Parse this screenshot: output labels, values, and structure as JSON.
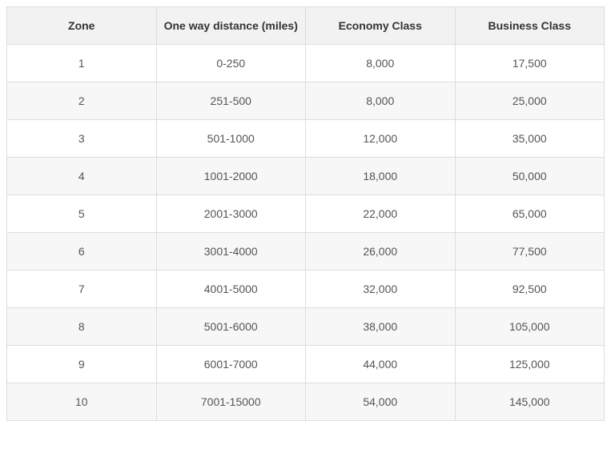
{
  "table": {
    "name": "award-zone-chart",
    "columns": [
      {
        "key": "zone",
        "label": "Zone"
      },
      {
        "key": "distance",
        "label": "One way distance (miles)"
      },
      {
        "key": "economy",
        "label": "Economy Class"
      },
      {
        "key": "business",
        "label": "Business Class"
      }
    ],
    "rows": [
      {
        "zone": "1",
        "distance": "0-250",
        "economy": "8,000",
        "business": "17,500"
      },
      {
        "zone": "2",
        "distance": "251-500",
        "economy": "8,000",
        "business": "25,000"
      },
      {
        "zone": "3",
        "distance": "501-1000",
        "economy": "12,000",
        "business": "35,000"
      },
      {
        "zone": "4",
        "distance": "1001-2000",
        "economy": "18,000",
        "business": "50,000"
      },
      {
        "zone": "5",
        "distance": "2001-3000",
        "economy": "22,000",
        "business": "65,000"
      },
      {
        "zone": "6",
        "distance": "3001-4000",
        "economy": "26,000",
        "business": "77,500"
      },
      {
        "zone": "7",
        "distance": "4001-5000",
        "economy": "32,000",
        "business": "92,500"
      },
      {
        "zone": "8",
        "distance": "5001-6000",
        "economy": "38,000",
        "business": "105,000"
      },
      {
        "zone": "9",
        "distance": "6001-7000",
        "economy": "44,000",
        "business": "125,000"
      },
      {
        "zone": "10",
        "distance": "7001-15000",
        "economy": "54,000",
        "business": "145,000"
      }
    ],
    "colors": {
      "header_bg": "#f2f2f2",
      "stripe_bg": "#f7f7f7",
      "border": "#dddddd",
      "header_text": "#333333",
      "cell_text": "#555555"
    }
  },
  "chart_data": {
    "type": "table",
    "title": "",
    "columns": [
      "Zone",
      "One way distance (miles)",
      "Economy Class",
      "Business Class"
    ],
    "rows": [
      [
        "1",
        "0-250",
        8000,
        17500
      ],
      [
        "2",
        "251-500",
        8000,
        25000
      ],
      [
        "3",
        "501-1000",
        12000,
        35000
      ],
      [
        "4",
        "1001-2000",
        18000,
        50000
      ],
      [
        "5",
        "2001-3000",
        22000,
        65000
      ],
      [
        "6",
        "3001-4000",
        26000,
        77500
      ],
      [
        "7",
        "4001-5000",
        32000,
        92500
      ],
      [
        "8",
        "5001-6000",
        38000,
        105000
      ],
      [
        "9",
        "6001-7000",
        44000,
        125000
      ],
      [
        "10",
        "7001-15000",
        54000,
        145000
      ]
    ]
  }
}
